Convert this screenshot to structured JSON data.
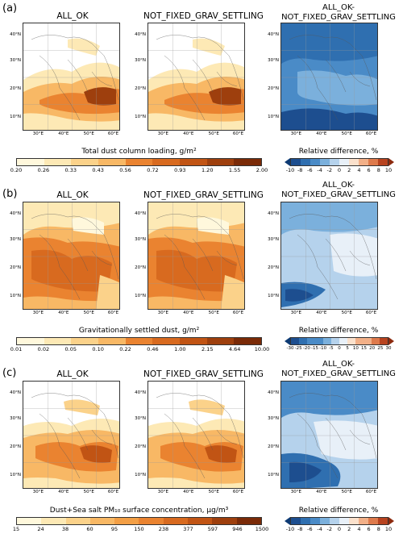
{
  "rows": [
    {
      "label": "(a)",
      "titles": [
        "ALL_OK",
        "NOT_FIXED_GRAV_SETTLING"
      ],
      "diff_title_1": "ALL_OK-",
      "diff_title_2": "NOT_FIXED_GRAV_SETTLING",
      "cb_title": "Total dust column loading, g/m²",
      "cb_ticks": [
        "0.20",
        "0.26",
        "0.33",
        "0.43",
        "0.56",
        "0.72",
        "0.93",
        "1.20",
        "1.55",
        "2.00"
      ],
      "diff_cb_title": "Relative difference, %",
      "diff_ticks": [
        "-10",
        "-8",
        "-6",
        "-4",
        "-2",
        "0",
        "2",
        "4",
        "6",
        "8",
        "10"
      ]
    },
    {
      "label": "(b)",
      "titles": [
        "ALL_OK",
        "NOT_FIXED_GRAV_SETTLING"
      ],
      "diff_title_1": "ALL_OK-",
      "diff_title_2": "NOT_FIXED_GRAV_SETTLING",
      "cb_title": "Gravitationally settled dust, g/m²",
      "cb_ticks": [
        "0.01",
        "0.02",
        "0.05",
        "0.10",
        "0.22",
        "0.46",
        "1.00",
        "2.15",
        "4.64",
        "10.00"
      ],
      "diff_cb_title": "Relative difference, %",
      "diff_ticks": [
        "-30",
        "-25",
        "-20",
        "-15",
        "-10",
        "-5",
        "0",
        "5",
        "10",
        "15",
        "20",
        "25",
        "30"
      ]
    },
    {
      "label": "(c)",
      "titles": [
        "ALL_OK",
        "NOT_FIXED_GRAV_SETTLING"
      ],
      "diff_title_1": "ALL_OK-",
      "diff_title_2": "NOT_FIXED_GRAV_SETTLING",
      "cb_title": "Dust+Sea salt PM₁₀ surface concentration, µg/m³",
      "cb_ticks": [
        "15",
        "24",
        "38",
        "60",
        "95",
        "150",
        "238",
        "377",
        "597",
        "946",
        "1500"
      ],
      "diff_cb_title": "Relative difference, %",
      "diff_ticks": [
        "-10",
        "-8",
        "-6",
        "-4",
        "-2",
        "0",
        "2",
        "4",
        "6",
        "8",
        "10"
      ]
    }
  ],
  "lat_labels": [
    "40°N",
    "30°N",
    "20°N",
    "10°N"
  ],
  "lon_labels": [
    "30°E",
    "40°E",
    "50°E",
    "60°E"
  ],
  "colors": {
    "seq": [
      "#fff8dc",
      "#fde9b5",
      "#fbd28a",
      "#f8b865",
      "#f39f45",
      "#ea8330",
      "#d86a1f",
      "#c15414",
      "#9e3f0d",
      "#7a2a07"
    ],
    "div": [
      "#1d4e8f",
      "#2f6fb0",
      "#4a8bc7",
      "#7bb0dc",
      "#b5d2ec",
      "#e8f0f8",
      "#fbe1cc",
      "#f2b088",
      "#de7a4c",
      "#b8431f"
    ]
  }
}
